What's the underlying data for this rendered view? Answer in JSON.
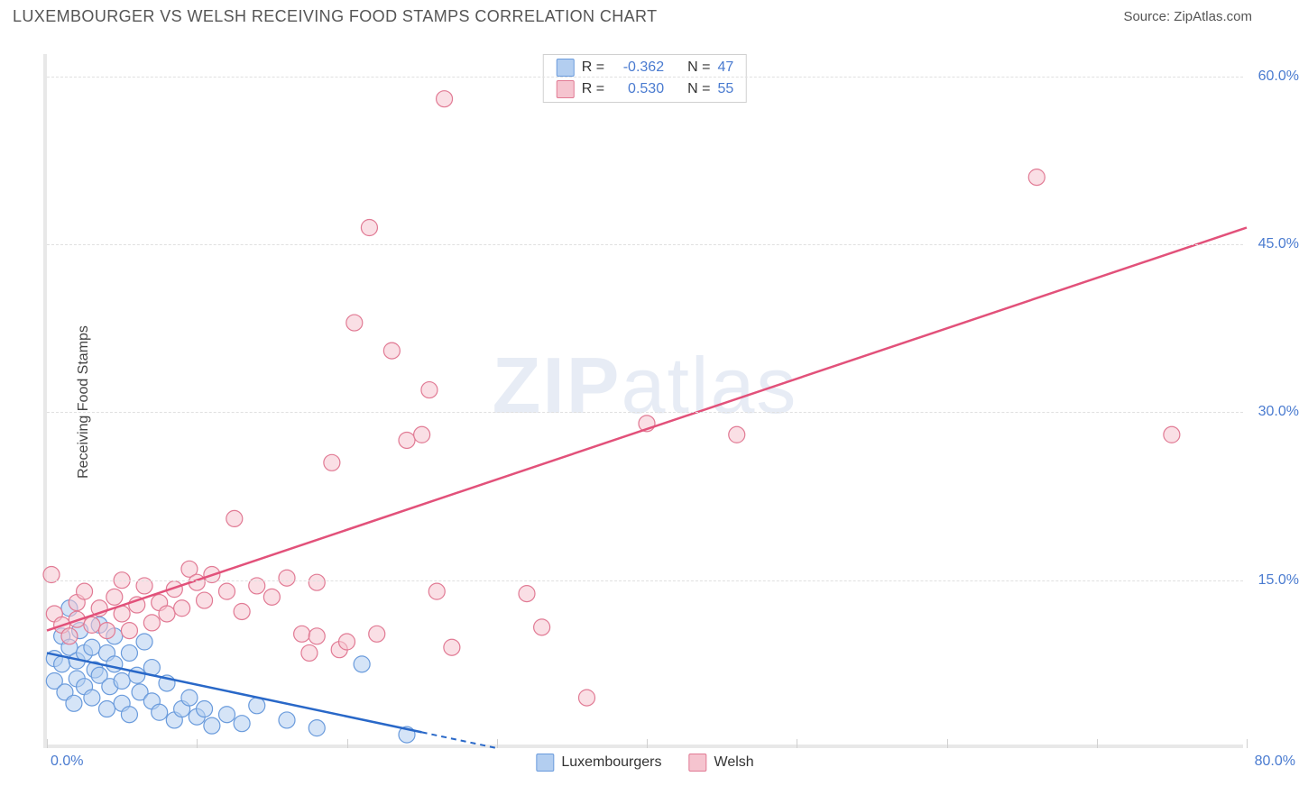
{
  "title": "LUXEMBOURGER VS WELSH RECEIVING FOOD STAMPS CORRELATION CHART",
  "source": "Source: ZipAtlas.com",
  "y_axis_label": "Receiving Food Stamps",
  "watermark_bold": "ZIP",
  "watermark_light": "atlas",
  "chart": {
    "type": "scatter",
    "xlim": [
      0,
      80
    ],
    "ylim": [
      0,
      62
    ],
    "x_ticks": [
      0,
      10,
      20,
      30,
      40,
      50,
      60,
      70,
      80
    ],
    "x_tick_labels": {
      "0": "0.0%",
      "80": "80.0%"
    },
    "y_grid": [
      15,
      30,
      45,
      60
    ],
    "y_tick_labels": {
      "15": "15.0%",
      "30": "30.0%",
      "45": "45.0%",
      "60": "60.0%"
    },
    "background_color": "#ffffff",
    "grid_color": "#e0e0e0",
    "axis_color": "#e8e8e8",
    "tick_label_color": "#4a7bd0"
  },
  "series": [
    {
      "name": "Luxembourgers",
      "fill": "#b3cef0",
      "stroke": "#6a9bdc",
      "line_color": "#2968c8",
      "marker_radius": 9,
      "fill_opacity": 0.55,
      "R": "-0.362",
      "N": "47",
      "trend": {
        "x1": 0,
        "y1": 8.5,
        "x2": 30,
        "y2": 0,
        "dash_after": 25
      },
      "points": [
        [
          0.5,
          8
        ],
        [
          0.5,
          6
        ],
        [
          1,
          7.5
        ],
        [
          1,
          10
        ],
        [
          1.2,
          5
        ],
        [
          1.5,
          9
        ],
        [
          1.5,
          12.5
        ],
        [
          1.8,
          4
        ],
        [
          2,
          7.8
        ],
        [
          2,
          6.2
        ],
        [
          2.2,
          10.5
        ],
        [
          2.5,
          5.5
        ],
        [
          2.5,
          8.5
        ],
        [
          3,
          9
        ],
        [
          3,
          4.5
        ],
        [
          3.2,
          7
        ],
        [
          3.5,
          11
        ],
        [
          3.5,
          6.5
        ],
        [
          4,
          8.5
        ],
        [
          4,
          3.5
        ],
        [
          4.2,
          5.5
        ],
        [
          4.5,
          7.5
        ],
        [
          4.5,
          10
        ],
        [
          5,
          6
        ],
        [
          5,
          4
        ],
        [
          5.5,
          8.5
        ],
        [
          5.5,
          3
        ],
        [
          6,
          6.5
        ],
        [
          6.2,
          5
        ],
        [
          6.5,
          9.5
        ],
        [
          7,
          4.2
        ],
        [
          7,
          7.2
        ],
        [
          7.5,
          3.2
        ],
        [
          8,
          5.8
        ],
        [
          8.5,
          2.5
        ],
        [
          9,
          3.5
        ],
        [
          9.5,
          4.5
        ],
        [
          10,
          2.8
        ],
        [
          10.5,
          3.5
        ],
        [
          11,
          2
        ],
        [
          12,
          3
        ],
        [
          13,
          2.2
        ],
        [
          14,
          3.8
        ],
        [
          16,
          2.5
        ],
        [
          18,
          1.8
        ],
        [
          21,
          7.5
        ],
        [
          24,
          1.2
        ]
      ]
    },
    {
      "name": "Welsh",
      "fill": "#f5c4cf",
      "stroke": "#e17a94",
      "line_color": "#e2517a",
      "marker_radius": 9,
      "fill_opacity": 0.55,
      "R": "0.530",
      "N": "55",
      "trend": {
        "x1": 0,
        "y1": 10.5,
        "x2": 80,
        "y2": 46.5
      },
      "points": [
        [
          0.3,
          15.5
        ],
        [
          0.5,
          12
        ],
        [
          1,
          11
        ],
        [
          1.5,
          10
        ],
        [
          2,
          13
        ],
        [
          2,
          11.5
        ],
        [
          2.5,
          14
        ],
        [
          3,
          11
        ],
        [
          3.5,
          12.5
        ],
        [
          4,
          10.5
        ],
        [
          4.5,
          13.5
        ],
        [
          5,
          12
        ],
        [
          5,
          15
        ],
        [
          5.5,
          10.5
        ],
        [
          6,
          12.8
        ],
        [
          6.5,
          14.5
        ],
        [
          7,
          11.2
        ],
        [
          7.5,
          13
        ],
        [
          8,
          12
        ],
        [
          8.5,
          14.2
        ],
        [
          9,
          12.5
        ],
        [
          9.5,
          16
        ],
        [
          10,
          14.8
        ],
        [
          10.5,
          13.2
        ],
        [
          11,
          15.5
        ],
        [
          12,
          14
        ],
        [
          12.5,
          20.5
        ],
        [
          13,
          12.2
        ],
        [
          14,
          14.5
        ],
        [
          15,
          13.5
        ],
        [
          16,
          15.2
        ],
        [
          17,
          10.2
        ],
        [
          17.5,
          8.5
        ],
        [
          18,
          14.8
        ],
        [
          18,
          10
        ],
        [
          19,
          25.5
        ],
        [
          19.5,
          8.8
        ],
        [
          20,
          9.5
        ],
        [
          20.5,
          38
        ],
        [
          21.5,
          46.5
        ],
        [
          22,
          10.2
        ],
        [
          23,
          35.5
        ],
        [
          24,
          27.5
        ],
        [
          25,
          28
        ],
        [
          25.5,
          32
        ],
        [
          26,
          14
        ],
        [
          26.5,
          58
        ],
        [
          27,
          9
        ],
        [
          32,
          13.8
        ],
        [
          33,
          10.8
        ],
        [
          36,
          4.5
        ],
        [
          40,
          29
        ],
        [
          46,
          28
        ],
        [
          66,
          51
        ],
        [
          75,
          28
        ]
      ]
    }
  ],
  "legend_bottom": [
    {
      "label": "Luxembourgers",
      "fill": "#b3cef0",
      "stroke": "#6a9bdc"
    },
    {
      "label": "Welsh",
      "fill": "#f5c4cf",
      "stroke": "#e17a94"
    }
  ]
}
